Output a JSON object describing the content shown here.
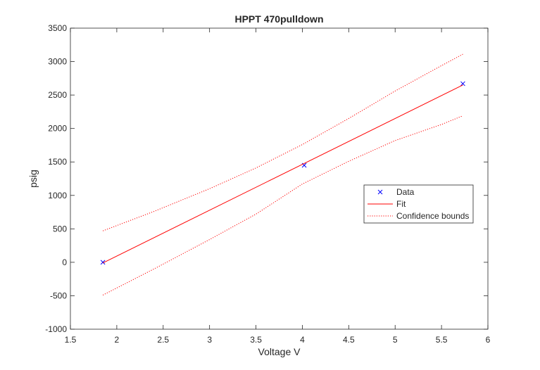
{
  "chart_data": {
    "type": "line",
    "title": "HPPT 470pulldown",
    "xlabel": "Voltage V",
    "ylabel": "psig",
    "xlim": [
      1.5,
      6
    ],
    "ylim": [
      -1000,
      3500
    ],
    "xticks": [
      1.5,
      2,
      2.5,
      3,
      3.5,
      4,
      4.5,
      5,
      5.5,
      6
    ],
    "xtick_labels": [
      "1.5",
      "2",
      "2.5",
      "3",
      "3.5",
      "4",
      "4.5",
      "5",
      "5.5",
      "6"
    ],
    "yticks": [
      -1000,
      -500,
      0,
      500,
      1000,
      1500,
      2000,
      2500,
      3000,
      3500
    ],
    "ytick_labels": [
      "-1000",
      "-500",
      "0",
      "500",
      "1000",
      "1500",
      "2000",
      "2500",
      "3000",
      "3500"
    ],
    "grid": false,
    "legend_position": "right",
    "series": [
      {
        "name": "Data",
        "style": "marker-x",
        "color": "#0000ff",
        "x": [
          1.85,
          4.02,
          5.73
        ],
        "y": [
          0,
          1450,
          2670
        ]
      },
      {
        "name": "Fit",
        "style": "solid",
        "color": "#ff0000",
        "x": [
          1.85,
          5.73
        ],
        "y": [
          -10,
          2650
        ]
      },
      {
        "name": "Confidence bounds",
        "style": "dotted",
        "color": "#ff0000",
        "x": [
          1.85,
          2.4,
          3.0,
          3.5,
          4.0,
          4.5,
          5.0,
          5.5,
          5.73
        ],
        "y": [
          470,
          760,
          1100,
          1410,
          1760,
          2150,
          2560,
          2940,
          3110
        ]
      },
      {
        "name": "",
        "style": "dotted",
        "color": "#ff0000",
        "x": [
          1.85,
          2.4,
          3.0,
          3.5,
          4.0,
          4.5,
          5.0,
          5.5,
          5.73
        ],
        "y": [
          -490,
          -100,
          340,
          720,
          1170,
          1510,
          1820,
          2060,
          2190
        ]
      }
    ],
    "legend": [
      "Data",
      "Fit",
      "Confidence bounds"
    ]
  }
}
